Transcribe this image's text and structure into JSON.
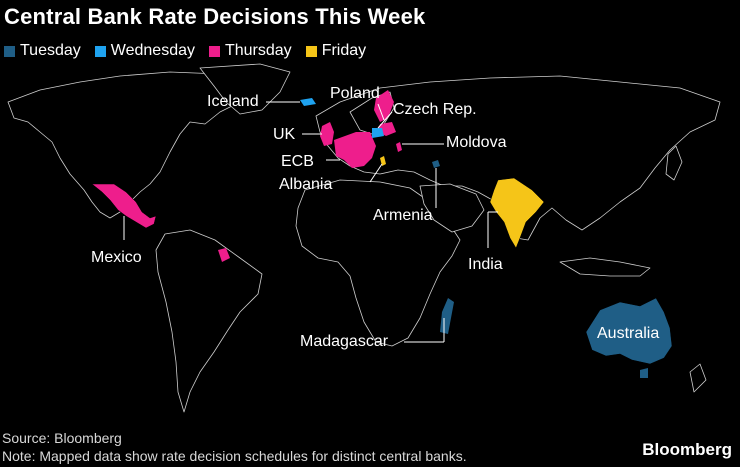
{
  "title": "Central Bank Rate Decisions This Week",
  "legend": [
    {
      "label": "Tuesday",
      "color": "#1f5e86"
    },
    {
      "label": "Wednesday",
      "color": "#1fa3f0"
    },
    {
      "label": "Thursday",
      "color": "#ee1e8c"
    },
    {
      "label": "Friday",
      "color": "#f5c518"
    }
  ],
  "countries": {
    "iceland": "Iceland",
    "poland": "Poland",
    "czech": "Czech Rep.",
    "uk": "UK",
    "moldova": "Moldova",
    "ecb": "ECB",
    "albania": "Albania",
    "armenia": "Armenia",
    "mexico": "Mexico",
    "india": "India",
    "madagascar": "Madagascar",
    "australia": "Australia"
  },
  "footer": {
    "source": "Source: Bloomberg",
    "note": "Note: Mapped data show rate decision schedules for distinct central banks."
  },
  "brand": "Bloomberg"
}
